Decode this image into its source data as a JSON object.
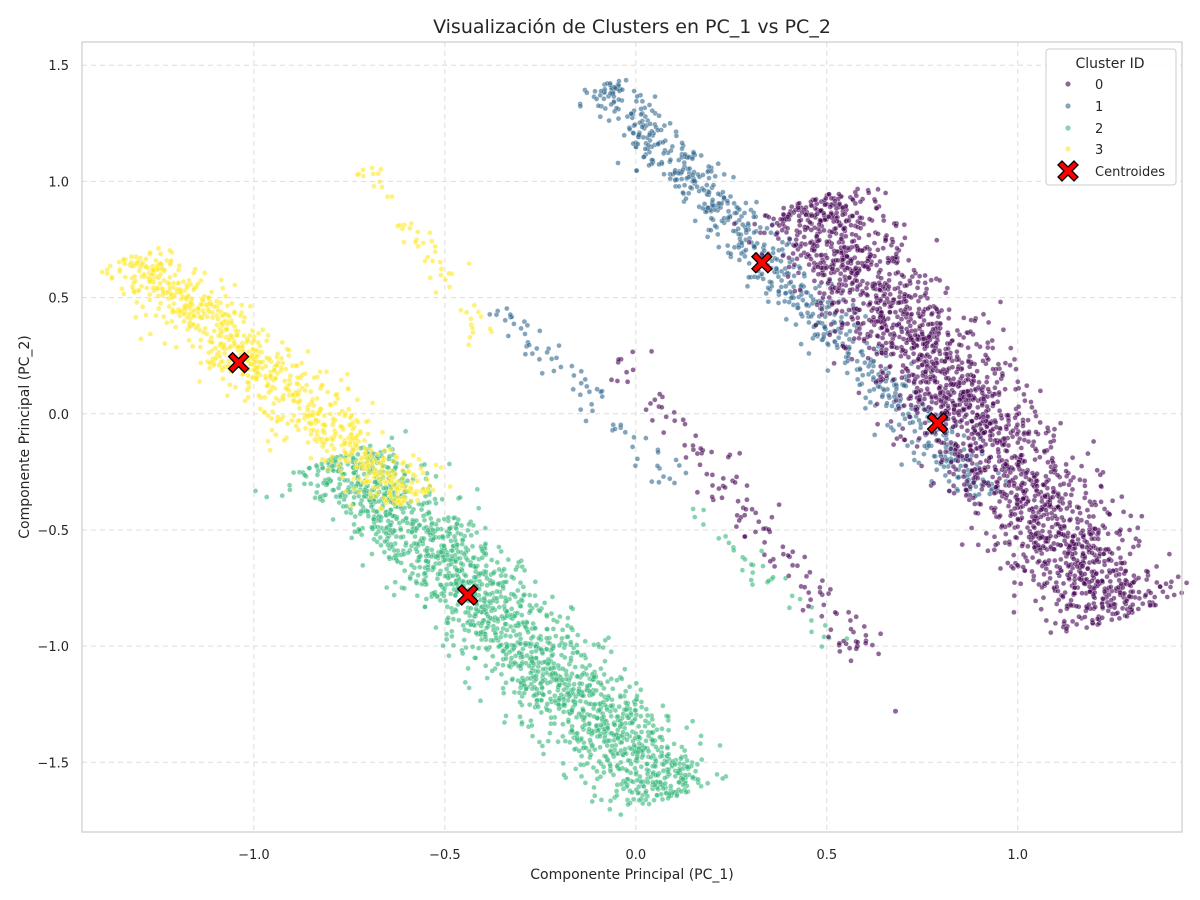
{
  "chart_data": {
    "type": "scatter",
    "title": "Visualización de Clusters en PC_1 vs PC_2",
    "xlabel": "Componente Principal (PC_1)",
    "ylabel": "Componente Principal (PC_2)",
    "xlim": [
      -1.45,
      1.43
    ],
    "ylim": [
      -1.8,
      1.6
    ],
    "xticks": [
      -1.0,
      -0.5,
      0.0,
      0.5,
      1.0
    ],
    "xtick_labels": [
      "−1.0",
      "−0.5",
      "0.0",
      "0.5",
      "1.0"
    ],
    "yticks": [
      -1.5,
      -1.0,
      -0.5,
      0.0,
      0.5,
      1.0,
      1.5
    ],
    "ytick_labels": [
      "−1.5",
      "−1.0",
      "−0.5",
      "0.0",
      "0.5",
      "1.0",
      "1.5"
    ],
    "grid": true,
    "legend": {
      "title": "Cluster ID",
      "placement": "top-right",
      "entries": [
        "0",
        "1",
        "2",
        "3",
        "Centroides"
      ]
    },
    "series": [
      {
        "name": "0",
        "color": "#440154",
        "marker": "circle",
        "alpha": 0.6,
        "segments": [
          {
            "start": [
              0.45,
              0.92
            ],
            "end": [
              1.27,
              -0.88
            ],
            "width": 0.2,
            "n": 2200
          },
          {
            "start": [
              -0.05,
              0.25
            ],
            "end": [
              0.62,
              -1.05
            ],
            "width": 0.09,
            "n": 130
          }
        ],
        "outliers": [
          [
            0.68,
            -1.28
          ],
          [
            0.58,
            -1.0
          ]
        ]
      },
      {
        "name": "1",
        "color": "#31688e",
        "marker": "circle",
        "alpha": 0.6,
        "segments": [
          {
            "start": [
              -0.09,
              1.42
            ],
            "end": [
              0.92,
              -0.35
            ],
            "width": 0.1,
            "n": 750
          },
          {
            "start": [
              -0.35,
              0.45
            ],
            "end": [
              0.1,
              -0.3
            ],
            "width": 0.07,
            "n": 70
          }
        ],
        "outliers": []
      },
      {
        "name": "2",
        "color": "#35b779",
        "marker": "circle",
        "alpha": 0.6,
        "segments": [
          {
            "start": [
              -0.78,
              -0.18
            ],
            "end": [
              0.1,
              -1.65
            ],
            "width": 0.18,
            "n": 1900
          },
          {
            "start": [
              0.1,
              -0.38
            ],
            "end": [
              0.55,
              -1.0
            ],
            "width": 0.07,
            "n": 35
          }
        ],
        "outliers": []
      },
      {
        "name": "3",
        "color": "#fde725",
        "marker": "circle",
        "alpha": 0.6,
        "segments": [
          {
            "start": [
              -1.32,
              0.68
            ],
            "end": [
              -0.58,
              -0.38
            ],
            "width": 0.13,
            "n": 850
          },
          {
            "start": [
              -0.72,
              1.06
            ],
            "end": [
              -0.38,
              0.3
            ],
            "width": 0.06,
            "n": 55
          }
        ],
        "outliers": []
      }
    ],
    "centroids": {
      "name": "Centroides",
      "color": "#ff0000",
      "marker": "X",
      "points": [
        {
          "x": -1.04,
          "y": 0.22
        },
        {
          "x": 0.33,
          "y": 0.65
        },
        {
          "x": -0.44,
          "y": -0.78
        },
        {
          "x": 0.79,
          "y": -0.04
        }
      ]
    }
  }
}
